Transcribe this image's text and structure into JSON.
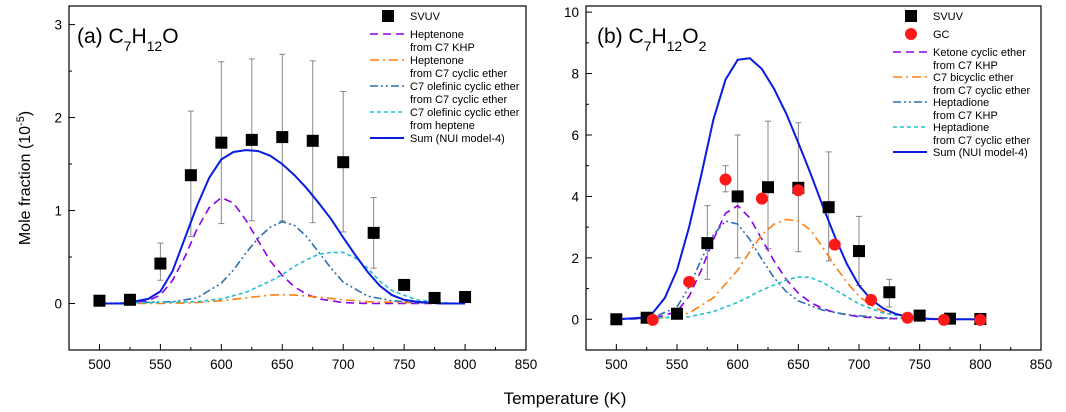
{
  "figure": {
    "xlabel": "Temperature (K)"
  },
  "chart_data": [
    {
      "type": "line",
      "panel": "(a)",
      "title_prefix": "(a) ",
      "formula": [
        [
          "C",
          ""
        ],
        [
          "7",
          "sub"
        ],
        [
          "H",
          ""
        ],
        [
          "12",
          "sub"
        ],
        [
          "O",
          ""
        ]
      ],
      "xlabel": "Temperature (K)",
      "ylabel": "Mole fraction (10",
      "ylabel_exp": "-5",
      "ylabel_close": ")",
      "xlim": [
        475,
        850
      ],
      "ylim": [
        -0.5,
        3.2
      ],
      "xticks": [
        "500",
        "550",
        "600",
        "650",
        "700",
        "750",
        "800",
        "850"
      ],
      "xtick_values": [
        500,
        550,
        600,
        650,
        700,
        750,
        800,
        850
      ],
      "yticks": [
        "0",
        "1",
        "2",
        "3"
      ],
      "ytick_values": [
        0,
        1,
        2,
        3
      ],
      "grid": false,
      "legend_position": "top-right",
      "scatter": [
        {
          "name": "SVUV",
          "marker": "square",
          "color": "#000000",
          "points": [
            [
              500,
              0.03
            ],
            [
              525,
              0.04
            ],
            [
              550,
              0.43
            ],
            [
              575,
              1.38
            ],
            [
              600,
              1.73
            ],
            [
              625,
              1.76
            ],
            [
              650,
              1.79
            ],
            [
              675,
              1.75
            ],
            [
              700,
              1.52
            ],
            [
              725,
              0.76
            ],
            [
              750,
              0.2
            ],
            [
              775,
              0.06
            ],
            [
              800,
              0.07
            ]
          ],
          "error": [
            [
              575,
              0.72,
              2.07
            ],
            [
              600,
              0.86,
              2.6
            ],
            [
              625,
              0.89,
              2.63
            ],
            [
              650,
              0.89,
              2.68
            ],
            [
              675,
              0.87,
              2.61
            ],
            [
              700,
              0.77,
              2.28
            ],
            [
              725,
              0.38,
              1.14
            ],
            [
              550,
              0.25,
              0.65
            ]
          ]
        }
      ],
      "series": [
        {
          "name": "Heptenone\n   from  C7 KHP",
          "color": "#8B00E6",
          "dash": "8,5",
          "x": [
            500,
            520,
            540,
            550,
            560,
            570,
            580,
            590,
            600,
            610,
            620,
            630,
            640,
            650,
            660,
            670,
            680,
            690,
            700,
            720,
            740,
            760,
            780,
            800
          ],
          "y": [
            0,
            0,
            0.03,
            0.09,
            0.25,
            0.5,
            0.8,
            1.03,
            1.14,
            1.08,
            0.9,
            0.68,
            0.46,
            0.3,
            0.18,
            0.1,
            0.05,
            0.03,
            0.01,
            0,
            0,
            0,
            0,
            0
          ]
        },
        {
          "name": "Heptenone\n   from C7 cyclic ether",
          "color": "#FF7F0E",
          "dash": "9,4,2,4",
          "x": [
            500,
            550,
            580,
            600,
            620,
            640,
            650,
            660,
            680,
            700,
            720,
            750,
            800
          ],
          "y": [
            0,
            0,
            0.01,
            0.03,
            0.06,
            0.09,
            0.095,
            0.09,
            0.07,
            0.04,
            0.02,
            0.01,
            0
          ]
        },
        {
          "name": "C7 olefinic cyclic ether\n   from C7 cyclic ether",
          "color": "#2E6FB2",
          "dash": "8,3,2,3,2,3",
          "x": [
            500,
            560,
            580,
            600,
            610,
            620,
            630,
            640,
            650,
            660,
            670,
            680,
            690,
            700,
            720,
            740,
            760,
            780,
            800
          ],
          "y": [
            0,
            0.02,
            0.06,
            0.22,
            0.36,
            0.54,
            0.7,
            0.82,
            0.88,
            0.84,
            0.72,
            0.55,
            0.38,
            0.23,
            0.08,
            0.03,
            0.01,
            0,
            0
          ]
        },
        {
          "name": "C7 olefinic cyclic ether\n   from heptene",
          "color": "#20C0D0",
          "dash": "4,3",
          "x": [
            500,
            580,
            600,
            620,
            640,
            650,
            660,
            670,
            680,
            690,
            700,
            710,
            720,
            730,
            740,
            760,
            780,
            800
          ],
          "y": [
            0,
            0.02,
            0.05,
            0.12,
            0.24,
            0.31,
            0.4,
            0.47,
            0.53,
            0.55,
            0.55,
            0.49,
            0.38,
            0.24,
            0.14,
            0.04,
            0.01,
            0
          ]
        },
        {
          "name": "Sum (NUI model-4)",
          "color": "#0A1CE0",
          "dash": "",
          "x": [
            500,
            520,
            540,
            550,
            560,
            570,
            580,
            590,
            600,
            610,
            620,
            630,
            640,
            650,
            660,
            670,
            680,
            690,
            700,
            710,
            720,
            730,
            740,
            750,
            760,
            780,
            800
          ],
          "y": [
            0,
            0,
            0.05,
            0.13,
            0.35,
            0.7,
            1.05,
            1.35,
            1.55,
            1.63,
            1.65,
            1.64,
            1.59,
            1.5,
            1.38,
            1.24,
            1.08,
            0.91,
            0.71,
            0.52,
            0.34,
            0.19,
            0.09,
            0.04,
            0.02,
            0,
            0
          ]
        }
      ],
      "legend_entries": [
        "SVUV",
        "Heptenone\n   from  C7 KHP",
        "Heptenone\n   from C7 cyclic ether",
        "C7 olefinic cyclic ether\n   from C7 cyclic ether",
        "C7 olefinic cyclic ether\n   from heptene",
        "Sum (NUI model-4)"
      ]
    },
    {
      "type": "line",
      "panel": "(b)",
      "title_prefix": "(b) ",
      "formula": [
        [
          "C",
          ""
        ],
        [
          "7",
          "sub"
        ],
        [
          "H",
          ""
        ],
        [
          "12",
          "sub"
        ],
        [
          "O",
          ""
        ],
        [
          "2",
          "sub"
        ]
      ],
      "xlabel": "Temperature (K)",
      "xlim": [
        475,
        850
      ],
      "ylim": [
        -1,
        10.2
      ],
      "xticks": [
        "500",
        "550",
        "600",
        "650",
        "700",
        "750",
        "800",
        "850"
      ],
      "xtick_values": [
        500,
        550,
        600,
        650,
        700,
        750,
        800,
        850
      ],
      "yticks": [
        "0",
        "2",
        "4",
        "6",
        "8",
        "10"
      ],
      "ytick_values": [
        0,
        2,
        4,
        6,
        8,
        10
      ],
      "grid": false,
      "legend_position": "top-right",
      "scatter": [
        {
          "name": "SVUV",
          "marker": "square",
          "color": "#000000",
          "points": [
            [
              500,
              0
            ],
            [
              525,
              0.05
            ],
            [
              550,
              0.18
            ],
            [
              575,
              2.48
            ],
            [
              600,
              4.0
            ],
            [
              625,
              4.3
            ],
            [
              650,
              4.28
            ],
            [
              675,
              3.65
            ],
            [
              700,
              2.22
            ],
            [
              725,
              0.88
            ],
            [
              750,
              0.12
            ],
            [
              775,
              0.02
            ],
            [
              800,
              0.01
            ]
          ],
          "error": [
            [
              575,
              1.3,
              3.7
            ],
            [
              600,
              2.0,
              6.0
            ],
            [
              625,
              2.3,
              6.45
            ],
            [
              650,
              2.2,
              6.4
            ],
            [
              675,
              1.9,
              5.45
            ],
            [
              700,
              1.1,
              3.35
            ],
            [
              725,
              0.4,
              1.3
            ]
          ]
        },
        {
          "name": "GC",
          "marker": "circle",
          "color": "#FF1A1A",
          "points": [
            [
              530,
              -0.02
            ],
            [
              560,
              1.22
            ],
            [
              590,
              4.55
            ],
            [
              620,
              3.93
            ],
            [
              650,
              4.2
            ],
            [
              680,
              2.43
            ],
            [
              710,
              0.63
            ],
            [
              740,
              0.05
            ],
            [
              770,
              -0.02
            ],
            [
              800,
              -0.02
            ]
          ],
          "error": [
            [
              590,
              4.15,
              5.0
            ]
          ]
        }
      ],
      "series": [
        {
          "name": "Ketone cyclic ether\n   from C7 KHP",
          "color": "#8B00E6",
          "dash": "8,5",
          "x": [
            500,
            530,
            550,
            560,
            570,
            580,
            590,
            600,
            610,
            620,
            630,
            640,
            650,
            660,
            670,
            680,
            700,
            720,
            740,
            760,
            780,
            800
          ],
          "y": [
            0,
            0.02,
            0.25,
            0.75,
            1.6,
            2.6,
            3.45,
            3.7,
            3.3,
            2.6,
            1.9,
            1.3,
            0.85,
            0.55,
            0.35,
            0.22,
            0.08,
            0.03,
            0.01,
            0,
            0,
            0
          ]
        },
        {
          "name": "C7 bicyclic ether\n   from C7 cyclic ether",
          "color": "#FF7F0E",
          "dash": "9,4,2,4",
          "x": [
            500,
            540,
            560,
            580,
            600,
            610,
            620,
            630,
            640,
            650,
            660,
            670,
            680,
            690,
            700,
            710,
            720,
            740,
            760,
            780,
            800
          ],
          "y": [
            0,
            0.05,
            0.2,
            0.7,
            1.6,
            2.2,
            2.75,
            3.1,
            3.25,
            3.2,
            2.9,
            2.35,
            1.75,
            1.2,
            0.75,
            0.45,
            0.25,
            0.08,
            0.02,
            0,
            0
          ]
        },
        {
          "name": "Heptadione\n   from C7 KHP",
          "color": "#2E6FB2",
          "dash": "8,3,2,3,2,3",
          "x": [
            500,
            530,
            550,
            560,
            570,
            580,
            590,
            600,
            610,
            620,
            630,
            640,
            650,
            670,
            690,
            720,
            760,
            800
          ],
          "y": [
            0,
            0.05,
            0.4,
            1.05,
            1.95,
            2.75,
            3.2,
            3.1,
            2.6,
            1.95,
            1.35,
            0.9,
            0.6,
            0.3,
            0.15,
            0.05,
            0.01,
            0
          ]
        },
        {
          "name": "Heptadione\n   from  C7 cyclic ether",
          "color": "#20C0D0",
          "dash": "4,3",
          "x": [
            500,
            560,
            580,
            600,
            620,
            640,
            650,
            660,
            670,
            680,
            700,
            720,
            740,
            760,
            780,
            800
          ],
          "y": [
            0,
            0.08,
            0.25,
            0.55,
            0.95,
            1.28,
            1.38,
            1.36,
            1.2,
            0.97,
            0.5,
            0.2,
            0.07,
            0.02,
            0,
            0
          ]
        },
        {
          "name": "Sum (NUI model-4)",
          "color": "#0A1CE0",
          "dash": "",
          "x": [
            500,
            520,
            530,
            540,
            550,
            560,
            570,
            580,
            590,
            600,
            610,
            620,
            630,
            640,
            650,
            660,
            670,
            680,
            690,
            700,
            710,
            720,
            730,
            740,
            750,
            760,
            780,
            800
          ],
          "y": [
            0,
            0.05,
            0.2,
            0.7,
            1.6,
            3.0,
            4.7,
            6.5,
            7.8,
            8.45,
            8.5,
            8.15,
            7.5,
            6.7,
            5.75,
            4.75,
            3.7,
            2.7,
            1.8,
            1.1,
            0.65,
            0.35,
            0.18,
            0.08,
            0.03,
            0.01,
            0,
            0
          ]
        }
      ],
      "legend_entries": [
        "SVUV",
        "GC",
        "Ketone cyclic ether\n   from C7 KHP",
        "C7 bicyclic ether\n   from C7 cyclic ether",
        "Heptadione\n   from C7 KHP",
        "Heptadione\n   from  C7 cyclic ether",
        "Sum (NUI model-4)"
      ]
    }
  ]
}
